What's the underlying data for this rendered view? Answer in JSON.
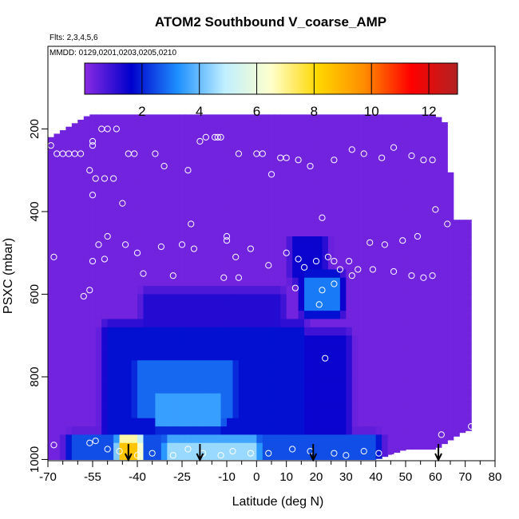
{
  "chart_data": {
    "type": "heatmap",
    "title": "ATOM2 Southbound V_coarse_AMP",
    "notes": [
      "Flts: 2,3,4,5,6",
      "MMDD: 0129,0201,0203,0205,0210"
    ],
    "xlabel": "Latitude (deg N)",
    "ylabel": "PSXC (mbar)",
    "xlim": [
      -70,
      80
    ],
    "ylim": [
      1000,
      0
    ],
    "x_ticks": [
      -70,
      -55,
      -40,
      -25,
      -10,
      0,
      10,
      20,
      30,
      40,
      50,
      60,
      70,
      80
    ],
    "x_minor_ticks": [
      -65,
      -60,
      -50,
      -45,
      -35,
      -30,
      -20,
      -15,
      -5,
      5,
      15,
      25,
      35,
      45,
      55,
      65,
      75
    ],
    "y_ticks": [
      200,
      400,
      600,
      800,
      1000
    ],
    "colorbar": {
      "min": 0,
      "max": 13,
      "ticks": [
        2,
        4,
        6,
        8,
        10,
        12
      ],
      "colors": [
        "#8a2be2",
        "#0000cc",
        "#1e90ff",
        "#bfefff",
        "#ffffcc",
        "#ffd700",
        "#ff8c00",
        "#ff0000",
        "#b22222"
      ]
    },
    "flight_arrows_lat": [
      -43,
      -19,
      19,
      61
    ],
    "column_tops_mbar": [
      [
        -69,
        220
      ],
      [
        -56,
        165
      ],
      [
        -40,
        165
      ],
      [
        -25,
        165
      ],
      [
        -10,
        165
      ],
      [
        0,
        165
      ],
      [
        10,
        165
      ],
      [
        20,
        165
      ],
      [
        30,
        165
      ],
      [
        40,
        165
      ],
      [
        50,
        165
      ],
      [
        60,
        165
      ],
      [
        64,
        190
      ],
      [
        66,
        420
      ],
      [
        71,
        420
      ]
    ],
    "column_bottoms_mbar": [
      [
        -70,
        1000
      ],
      [
        -56,
        1000
      ],
      [
        40,
        1000
      ],
      [
        50,
        975
      ],
      [
        60,
        975
      ],
      [
        70,
        930
      ]
    ],
    "regions": [
      {
        "lat": [
          -70,
          72
        ],
        "p": [
          160,
          1000
        ],
        "value": 0.3
      },
      {
        "lat": [
          -37,
          8
        ],
        "p": [
          600,
          680
        ],
        "value": 1.2
      },
      {
        "lat": [
          -50,
          15
        ],
        "p": [
          680,
          950
        ],
        "value": 1.8
      },
      {
        "lat": [
          -40,
          -8
        ],
        "p": [
          760,
          900
        ],
        "value": 2.8
      },
      {
        "lat": [
          -33,
          -12
        ],
        "p": [
          840,
          920
        ],
        "value": 3.5
      },
      {
        "lat": [
          5,
          30
        ],
        "p": [
          700,
          960
        ],
        "value": 1.5
      },
      {
        "lat": [
          17,
          27
        ],
        "p": [
          560,
          640
        ],
        "value": 3.0
      },
      {
        "lat": [
          13,
          22
        ],
        "p": [
          470,
          560
        ],
        "value": 1.5
      },
      {
        "lat": [
          -62,
          40
        ],
        "p": [
          950,
          1000
        ],
        "value": 2.5
      },
      {
        "lat": [
          -45,
          -40
        ],
        "p": [
          955,
          1000
        ],
        "value": 8.5
      },
      {
        "lat": [
          -30,
          0
        ],
        "p": [
          955,
          1000
        ],
        "value": 4.5
      }
    ],
    "sample_points": [
      [
        -69,
        240
      ],
      [
        -67,
        260
      ],
      [
        -65,
        260
      ],
      [
        -63,
        260
      ],
      [
        -61,
        260
      ],
      [
        -59,
        260
      ],
      [
        -55,
        230
      ],
      [
        -55,
        240
      ],
      [
        -56,
        300
      ],
      [
        -54,
        320
      ],
      [
        -51,
        320
      ],
      [
        -48,
        320
      ],
      [
        -52,
        200
      ],
      [
        -50,
        200
      ],
      [
        -47,
        200
      ],
      [
        -43,
        260
      ],
      [
        -41,
        260
      ],
      [
        -34,
        260
      ],
      [
        -31,
        290
      ],
      [
        -23,
        300
      ],
      [
        -19,
        230
      ],
      [
        -17,
        220
      ],
      [
        -14,
        220
      ],
      [
        -12,
        220
      ],
      [
        -13,
        220
      ],
      [
        -6,
        260
      ],
      [
        0,
        260
      ],
      [
        2,
        260
      ],
      [
        5,
        310
      ],
      [
        8,
        270
      ],
      [
        10,
        270
      ],
      [
        14,
        275
      ],
      [
        18,
        290
      ],
      [
        26,
        275
      ],
      [
        32,
        250
      ],
      [
        36,
        260
      ],
      [
        42,
        270
      ],
      [
        46,
        245
      ],
      [
        52,
        265
      ],
      [
        56,
        275
      ],
      [
        59,
        275
      ],
      [
        66,
        200
      ],
      [
        68,
        200
      ],
      [
        -45,
        380
      ],
      [
        -55,
        360
      ],
      [
        -53,
        480
      ],
      [
        -50,
        460
      ],
      [
        -55,
        520
      ],
      [
        -51,
        515
      ],
      [
        -44,
        480
      ],
      [
        -40,
        500
      ],
      [
        -32,
        485
      ],
      [
        -25,
        480
      ],
      [
        -21,
        490
      ],
      [
        -22,
        430
      ],
      [
        -10,
        460
      ],
      [
        -10,
        470
      ],
      [
        -7,
        510
      ],
      [
        -2,
        490
      ],
      [
        4,
        530
      ],
      [
        10,
        500
      ],
      [
        14,
        515
      ],
      [
        16,
        535
      ],
      [
        20,
        520
      ],
      [
        22,
        415
      ],
      [
        24,
        510
      ],
      [
        26,
        520
      ],
      [
        28,
        540
      ],
      [
        31,
        520
      ],
      [
        34,
        540
      ],
      [
        38,
        475
      ],
      [
        43,
        480
      ],
      [
        49,
        470
      ],
      [
        54,
        460
      ],
      [
        60,
        395
      ],
      [
        64,
        430
      ],
      [
        -68,
        510
      ],
      [
        -58,
        605
      ],
      [
        -56,
        590
      ],
      [
        -38,
        550
      ],
      [
        -28,
        555
      ],
      [
        -11,
        560
      ],
      [
        -6,
        560
      ],
      [
        13,
        585
      ],
      [
        22,
        590
      ],
      [
        26,
        575
      ],
      [
        32,
        555
      ],
      [
        39,
        540
      ],
      [
        46,
        545
      ],
      [
        52,
        555
      ],
      [
        56,
        560
      ],
      [
        59,
        555
      ],
      [
        23,
        755
      ],
      [
        21,
        625
      ],
      [
        -68,
        965
      ],
      [
        -56,
        960
      ],
      [
        -54,
        955
      ],
      [
        -50,
        975
      ],
      [
        -46,
        980
      ],
      [
        -40,
        990
      ],
      [
        -35,
        985
      ],
      [
        -28,
        990
      ],
      [
        -23,
        975
      ],
      [
        -18,
        985
      ],
      [
        -12,
        990
      ],
      [
        -8,
        980
      ],
      [
        -2,
        985
      ],
      [
        4,
        985
      ],
      [
        12,
        975
      ],
      [
        18,
        980
      ],
      [
        26,
        985
      ],
      [
        30,
        990
      ],
      [
        36,
        980
      ],
      [
        41,
        985
      ],
      [
        46,
        995
      ],
      [
        52,
        995
      ],
      [
        62,
        940
      ],
      [
        72,
        920
      ]
    ]
  }
}
